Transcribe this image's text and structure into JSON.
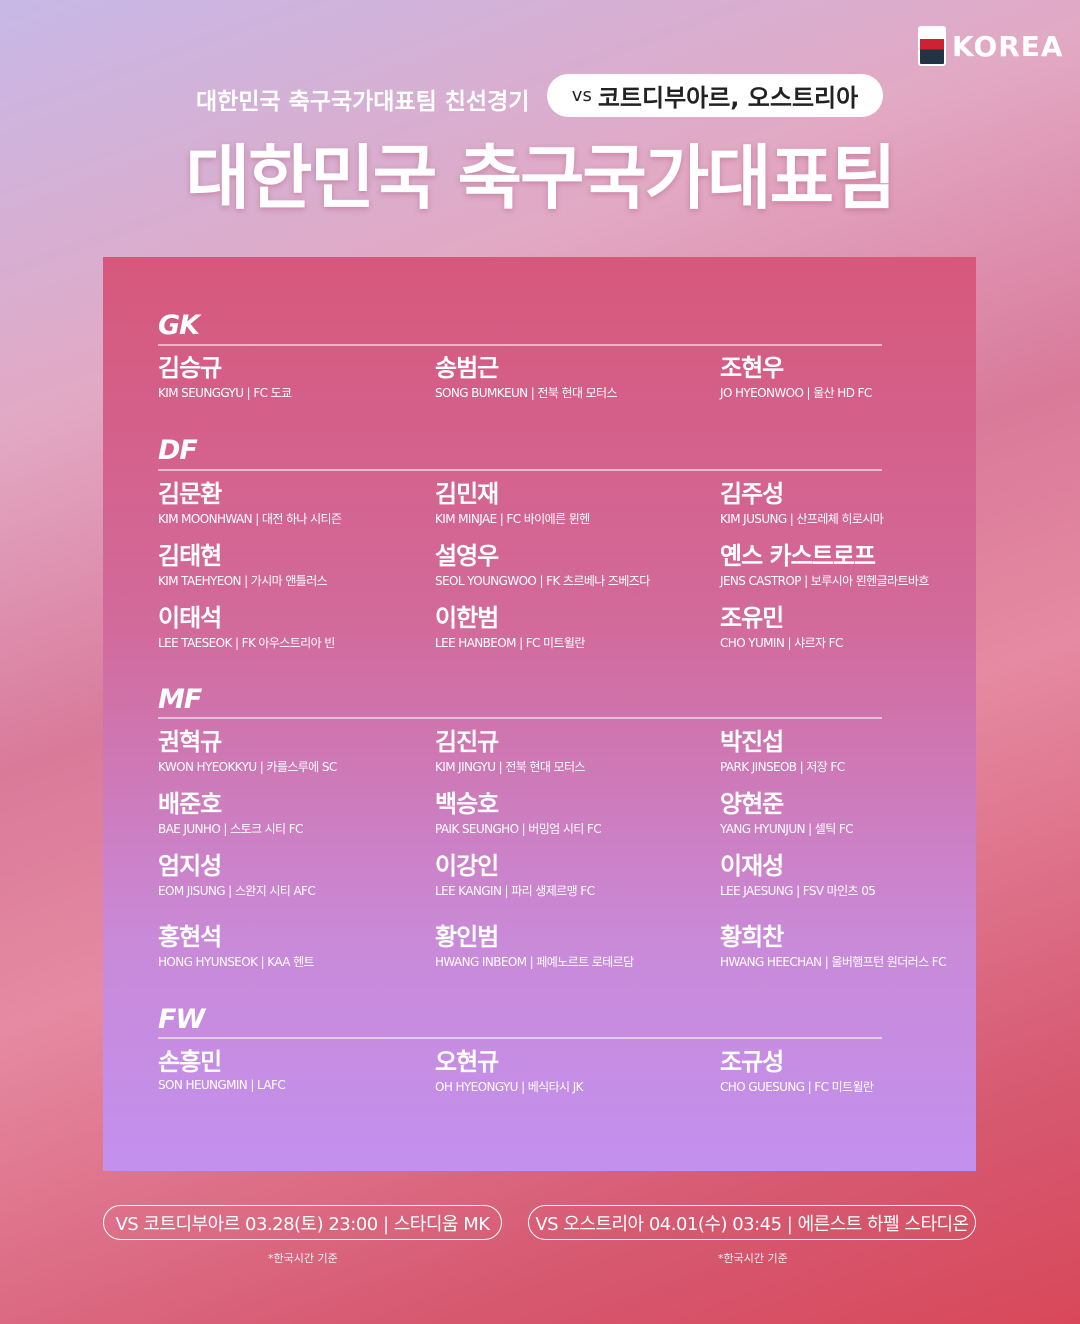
{
  "logo": {
    "text": "KOREA",
    "icon": "kfa-tiger-emblem"
  },
  "header": {
    "subtitle": "대한민국 축구국가대표팀 친선경기",
    "vs_prefix": "vs",
    "vs_teams": "코트디부아르, 오스트리아",
    "title": "대한민국 축구국가대표팀"
  },
  "sections": [
    {
      "pos": "GK",
      "players": [
        {
          "name": "김승규",
          "info": "KIM SEUNGGYU | FC 도쿄"
        },
        {
          "name": "송범근",
          "info": "SONG BUMKEUN | 전북 현대 모터스"
        },
        {
          "name": "조현우",
          "info": "JO HYEONWOO | 울산 HD FC"
        }
      ]
    },
    {
      "pos": "DF",
      "players": [
        {
          "name": "김문환",
          "info": "KIM MOONHWAN | 대전 하나 시티즌"
        },
        {
          "name": "김민재",
          "info": "KIM MINJAE | FC 바이에른 뮌헨"
        },
        {
          "name": "김주성",
          "info": "KIM JUSUNG | 산프레체 히로시마"
        },
        {
          "name": "김태현",
          "info": "KIM TAEHYEON | 가시마 앤틀러스"
        },
        {
          "name": "설영우",
          "info": "SEOL YOUNGWOO | FK 츠르베나 즈베즈다"
        },
        {
          "name": "옌스 카스트로프",
          "info": "JENS CASTROP | 보루시아 묀헨글라트바흐"
        },
        {
          "name": "이태석",
          "info": "LEE TAESEOK | FK 아우스트리아 빈"
        },
        {
          "name": "이한범",
          "info": "LEE HANBEOM | FC 미트윌란"
        },
        {
          "name": "조유민",
          "info": "CHO YUMIN | 샤르자 FC"
        }
      ]
    },
    {
      "pos": "MF",
      "players": [
        {
          "name": "권혁규",
          "info": "KWON HYEOKKYU | 카를스루에 SC"
        },
        {
          "name": "김진규",
          "info": "KIM JINGYU | 전북 현대 모터스"
        },
        {
          "name": "박진섭",
          "info": "PARK JINSEOB | 저장 FC"
        },
        {
          "name": "배준호",
          "info": "BAE JUNHO | 스토크 시티 FC"
        },
        {
          "name": "백승호",
          "info": "PAIK SEUNGHO | 버밍엄 시티 FC"
        },
        {
          "name": "양현준",
          "info": "YANG HYUNJUN | 셀틱 FC"
        },
        {
          "name": "엄지성",
          "info": "EOM JISUNG | 스완지 시티 AFC"
        },
        {
          "name": "이강인",
          "info": "LEE KANGIN | 파리 생제르맹 FC"
        },
        {
          "name": "이재성",
          "info": "LEE JAESUNG | FSV 마인츠 05"
        },
        {
          "name": "홍현석",
          "info": "HONG HYUNSEOK | KAA 헨트"
        },
        {
          "name": "황인범",
          "info": "HWANG INBEOM | 페예노르트 로테르담"
        },
        {
          "name": "황희찬",
          "info": "HWANG HEECHAN | 울버햄프턴 원더러스 FC"
        }
      ]
    },
    {
      "pos": "FW",
      "players": [
        {
          "name": "손흥민",
          "info": "SON HEUNGMIN | LAFC"
        },
        {
          "name": "오현규",
          "info": "OH HYEONGYU | 베식타시 JK"
        },
        {
          "name": "조규성",
          "info": "CHO GUESUNG | FC 미트윌란"
        }
      ]
    }
  ],
  "matches": [
    {
      "text": "VS 코트디부아르 03.28(토) 23:00 | 스타디움 MK",
      "note": "*한국시간 기준"
    },
    {
      "text": "VS 오스트리아 04.01(수) 03:45 | 에른스트 하펠 스타디온",
      "note": "*한국시간 기준"
    }
  ]
}
